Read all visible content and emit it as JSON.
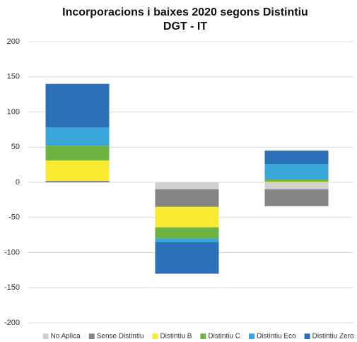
{
  "chart_data": {
    "type": "stacked_bar",
    "title": [
      "Incorporacions i baixes 2020 segons Distintiu",
      "DGT - IT"
    ],
    "categories": [
      null,
      null,
      null
    ],
    "series": [
      {
        "name": "No Aplica",
        "color": "#d0d0d0",
        "values": [
          0,
          -10,
          -10
        ]
      },
      {
        "name": "Sense Distintiu",
        "color": "#858585",
        "values": [
          2,
          -25,
          -24
        ]
      },
      {
        "name": "Distintiu B",
        "color": "#f7ea30",
        "values": [
          29,
          -29,
          1
        ]
      },
      {
        "name": "Distintiu C",
        "color": "#6cb33f",
        "values": [
          21,
          -16,
          3
        ]
      },
      {
        "name": "Distintiu Eco",
        "color": "#3aa7da",
        "values": [
          26,
          -5,
          22
        ]
      },
      {
        "name": "Distintiu Zero",
        "color": "#2b6fb6",
        "values": [
          62,
          -45,
          19
        ]
      }
    ],
    "ylim": [
      -200,
      200
    ],
    "yticks": [
      -200,
      -150,
      -100,
      -50,
      0,
      50,
      100,
      150,
      200
    ],
    "grid": true,
    "legend": "bottom"
  }
}
